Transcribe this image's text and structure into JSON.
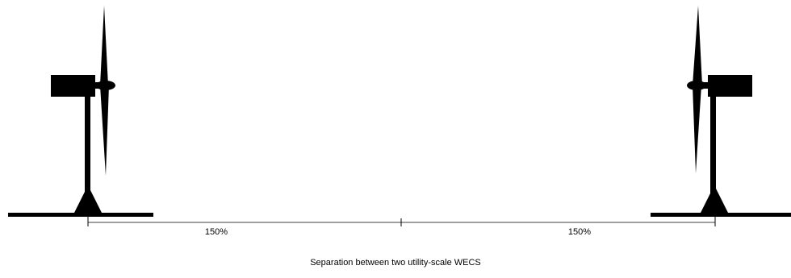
{
  "diagram": {
    "left_label": "150%",
    "right_label": "150%",
    "caption": "Separation between two utility-scale WECS"
  },
  "colors": {
    "ink": "#000000",
    "background": "#ffffff"
  },
  "icons": {
    "left_turbine": "wind-turbine-icon",
    "right_turbine": "wind-turbine-icon"
  }
}
